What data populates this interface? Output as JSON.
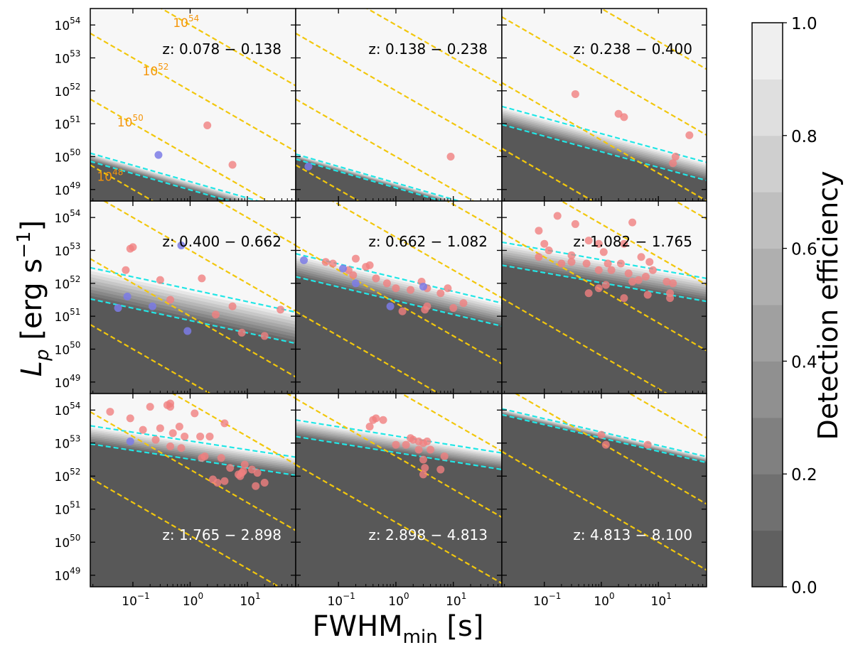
{
  "figure": {
    "ylabel_main": "L",
    "ylabel_sub": "p",
    "ylabel_unit": " [erg s",
    "ylabel_exp": "−1",
    "ylabel_close": "]",
    "xlabel_main": "FWHM",
    "xlabel_sub": "min",
    "xlabel_unit": " [s]"
  },
  "x_ticks": [
    {
      "base": "10",
      "exp": "−1",
      "value": 0.1
    },
    {
      "base": "10",
      "exp": "0",
      "value": 1
    },
    {
      "base": "10",
      "exp": "1",
      "value": 10
    }
  ],
  "y_ticks": [
    {
      "base": "10",
      "exp": "49",
      "value": 49
    },
    {
      "base": "10",
      "exp": "50",
      "value": 50
    },
    {
      "base": "10",
      "exp": "51",
      "value": 51
    },
    {
      "base": "10",
      "exp": "52",
      "value": 52
    },
    {
      "base": "10",
      "exp": "53",
      "value": 53
    },
    {
      "base": "10",
      "exp": "54",
      "value": 54
    }
  ],
  "colorbar": {
    "label": "Detection efficiency",
    "ticks": [
      "0.0",
      "0.2",
      "0.4",
      "0.6",
      "0.8",
      "1.0"
    ],
    "levels": 10
  },
  "colors": {
    "red_points": "#f08080",
    "blue_points": "#7b7be6",
    "cyan_lines": "#22e6e6",
    "yellow_lines": "#f2c70c",
    "energy_labels": "#f5950a",
    "dark_fill": "#585858",
    "light_fill": "#f7f7f7"
  },
  "chart_data": {
    "type": "scatter",
    "xscale": "log",
    "yscale": "log",
    "xlim": [
      0.018,
      70
    ],
    "ylim": [
      48.65,
      54.5
    ],
    "energy_isolines": [
      {
        "log_e": 48,
        "label": "10",
        "label_exp": "48"
      },
      {
        "log_e": 50,
        "label": "10",
        "label_exp": "50"
      },
      {
        "log_e": 52,
        "label": "10",
        "label_exp": "52"
      },
      {
        "log_e": 54,
        "label": "10",
        "label_exp": "54"
      }
    ],
    "panels": [
      {
        "label": "z: 0.078 − 0.138",
        "label_pos": "top",
        "labels_on_lines": true,
        "threshold": {
          "t0": 0.018,
          "y0": 49.98,
          "t1": 70,
          "y1": 48.2,
          "width": 0.25
        },
        "red": [
          [
            2,
            50.95
          ],
          [
            5.5,
            49.75
          ]
        ],
        "blue": [
          [
            0.28,
            50.05
          ]
        ]
      },
      {
        "label": "z: 0.138 − 0.238",
        "label_pos": "top",
        "threshold": {
          "t0": 0.018,
          "y0": 50.0,
          "t1": 70,
          "y1": 48.2,
          "width": 0.15
        },
        "red": [
          [
            9,
            50.0
          ]
        ],
        "blue": [
          [
            0.03,
            49.7
          ]
        ]
      },
      {
        "label": "z: 0.238 − 0.400",
        "label_pos": "top",
        "threshold": {
          "t0": 0.018,
          "y0": 51.25,
          "t1": 70,
          "y1": 49.55,
          "width": 0.55
        },
        "red": [
          [
            0.35,
            51.9
          ],
          [
            2,
            51.3
          ],
          [
            2.5,
            51.2
          ],
          [
            35,
            50.65
          ],
          [
            20,
            50.0
          ],
          [
            18,
            49.8
          ]
        ],
        "blue": []
      },
      {
        "label": "z: 0.400 − 0.662",
        "label_pos": "top",
        "threshold": {
          "t0": 0.018,
          "y0": 52.0,
          "t1": 70,
          "y1": 50.65,
          "width": 0.95
        },
        "red": [
          [
            0.1,
            53.1
          ],
          [
            0.09,
            53.05
          ],
          [
            0.075,
            52.4
          ],
          [
            0.3,
            52.1
          ],
          [
            1.6,
            52.15
          ],
          [
            0.45,
            51.5
          ],
          [
            5.5,
            51.3
          ],
          [
            2.8,
            51.05
          ],
          [
            8,
            50.5
          ],
          [
            20,
            50.4
          ],
          [
            38,
            51.2
          ]
        ],
        "blue": [
          [
            0.7,
            53.15
          ],
          [
            0.08,
            51.6
          ],
          [
            0.055,
            51.25
          ],
          [
            0.22,
            51.3
          ],
          [
            0.9,
            50.55
          ]
        ]
      },
      {
        "label": "z: 0.662 − 1.082",
        "label_pos": "top",
        "threshold": {
          "t0": 0.018,
          "y0": 52.55,
          "t1": 70,
          "y1": 51.05,
          "width": 0.7
        },
        "red": [
          [
            0.06,
            52.65
          ],
          [
            0.08,
            52.6
          ],
          [
            0.15,
            52.4
          ],
          [
            0.18,
            52.25
          ],
          [
            0.2,
            52.75
          ],
          [
            0.3,
            52.5
          ],
          [
            0.45,
            52.15
          ],
          [
            0.7,
            52.0
          ],
          [
            1,
            51.85
          ],
          [
            1.8,
            51.8
          ],
          [
            2.8,
            52.05
          ],
          [
            3.5,
            51.85
          ],
          [
            6,
            51.7
          ],
          [
            8,
            51.85
          ],
          [
            3.2,
            51.2
          ],
          [
            1.3,
            51.15
          ],
          [
            3.5,
            51.3
          ],
          [
            10,
            51.25
          ],
          [
            15,
            51.4
          ],
          [
            0.35,
            52.55
          ]
        ],
        "blue": [
          [
            0.025,
            52.7
          ],
          [
            0.12,
            52.45
          ],
          [
            0.2,
            52.0
          ],
          [
            0.8,
            51.3
          ],
          [
            3,
            51.9
          ]
        ]
      },
      {
        "label": "z: 1.082 − 1.765",
        "label_pos": "top",
        "threshold": {
          "t0": 0.018,
          "y0": 52.9,
          "t1": 70,
          "y1": 51.8,
          "width": 0.7
        },
        "red": [
          [
            0.08,
            53.6
          ],
          [
            0.17,
            54.05
          ],
          [
            0.35,
            53.8
          ],
          [
            0.1,
            53.2
          ],
          [
            0.12,
            53.0
          ],
          [
            0.08,
            52.8
          ],
          [
            0.3,
            52.85
          ],
          [
            0.2,
            52.6
          ],
          [
            0.6,
            53.3
          ],
          [
            0.9,
            53.2
          ],
          [
            1.1,
            52.95
          ],
          [
            2.5,
            53.2
          ],
          [
            3.5,
            53.85
          ],
          [
            5,
            52.8
          ],
          [
            7,
            52.65
          ],
          [
            0.55,
            52.6
          ],
          [
            0.9,
            52.4
          ],
          [
            1.3,
            52.6
          ],
          [
            2.2,
            52.6
          ],
          [
            3,
            52.3
          ],
          [
            4.5,
            52.1
          ],
          [
            6,
            52.2
          ],
          [
            8,
            52.4
          ],
          [
            14,
            52.05
          ],
          [
            18,
            52.0
          ],
          [
            16,
            51.7
          ],
          [
            6.5,
            51.65
          ],
          [
            3.5,
            52.05
          ],
          [
            1.2,
            51.95
          ],
          [
            0.9,
            51.85
          ],
          [
            0.6,
            51.7
          ],
          [
            2.5,
            51.55
          ],
          [
            16,
            51.55
          ],
          [
            0.3,
            52.65
          ],
          [
            1.5,
            52.4
          ]
        ],
        "blue": []
      },
      {
        "label": "z: 1.765 − 2.898",
        "label_pos": "bottom",
        "threshold": {
          "t0": 0.018,
          "y0": 53.25,
          "t1": 70,
          "y1": 52.3,
          "width": 0.55
        },
        "red": [
          [
            0.04,
            53.95
          ],
          [
            0.09,
            53.75
          ],
          [
            0.2,
            54.1
          ],
          [
            0.4,
            54.15
          ],
          [
            0.45,
            54.1
          ],
          [
            1.2,
            53.9
          ],
          [
            0.15,
            53.4
          ],
          [
            0.3,
            53.45
          ],
          [
            0.65,
            53.5
          ],
          [
            0.8,
            53.2
          ],
          [
            0.25,
            53.1
          ],
          [
            0.45,
            52.9
          ],
          [
            0.5,
            53.3
          ],
          [
            0.7,
            52.85
          ],
          [
            1.5,
            53.2
          ],
          [
            1.8,
            52.6
          ],
          [
            2.2,
            53.2
          ],
          [
            4,
            53.6
          ],
          [
            3.5,
            52.55
          ],
          [
            5,
            52.25
          ],
          [
            7,
            52.05
          ],
          [
            8,
            52.1
          ],
          [
            9,
            52.35
          ],
          [
            12,
            52.2
          ],
          [
            15,
            52.1
          ],
          [
            8.5,
            52.15
          ],
          [
            4,
            51.85
          ],
          [
            3,
            51.8
          ],
          [
            2.5,
            51.9
          ],
          [
            7.5,
            52.0
          ],
          [
            20,
            51.8
          ],
          [
            14,
            51.7
          ],
          [
            0.45,
            54.2
          ],
          [
            1.6,
            52.55
          ]
        ],
        "blue": [
          [
            0.09,
            53.05
          ]
        ]
      },
      {
        "label": "z: 2.898 − 4.813",
        "label_pos": "bottom",
        "threshold": {
          "t0": 0.018,
          "y0": 53.45,
          "t1": 70,
          "y1": 52.45,
          "width": 0.5
        },
        "red": [
          [
            0.4,
            53.7
          ],
          [
            0.45,
            53.75
          ],
          [
            0.6,
            53.7
          ],
          [
            0.35,
            53.5
          ],
          [
            1,
            52.95
          ],
          [
            2,
            53.1
          ],
          [
            3,
            53.0
          ],
          [
            2.5,
            52.8
          ],
          [
            4,
            52.8
          ],
          [
            3.5,
            53.05
          ],
          [
            1.5,
            52.95
          ],
          [
            3,
            52.5
          ],
          [
            7,
            52.6
          ],
          [
            3.2,
            52.25
          ],
          [
            3,
            52.05
          ],
          [
            6,
            52.2
          ],
          [
            2.5,
            53.05
          ],
          [
            1.8,
            53.15
          ]
        ],
        "blue": []
      },
      {
        "label": "z: 4.813 − 8.100",
        "label_pos": "bottom",
        "threshold": {
          "t0": 0.018,
          "y0": 53.95,
          "t1": 70,
          "y1": 52.5,
          "width": 0.18
        },
        "red": [
          [
            1,
            53.25
          ],
          [
            1.2,
            52.95
          ],
          [
            6.5,
            52.95
          ]
        ],
        "blue": []
      }
    ]
  }
}
